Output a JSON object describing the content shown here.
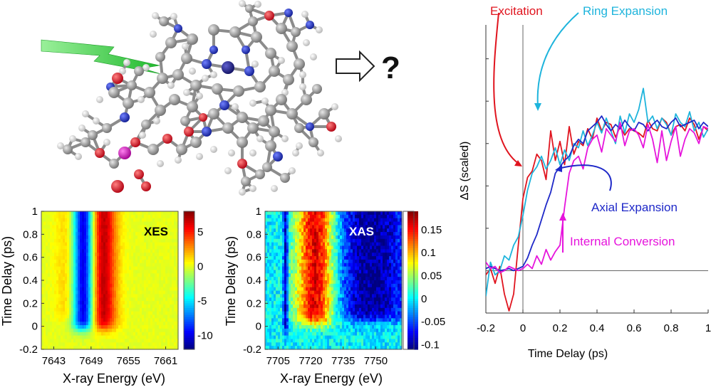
{
  "molecule": {
    "arrow_label": "?",
    "atom_colors": {
      "carbon": "#8c8c8c",
      "hydrogen": "#e6e6e6",
      "oxygen": "#e0141e",
      "nitrogen": "#1e28c8",
      "phosphorus": "#e614c8",
      "cobalt": "#1a1a8c"
    },
    "lightning_color": "#2ec840"
  },
  "chart_data": [
    {
      "type": "heatmap",
      "panel_label": "XES",
      "xlabel": "X-ray Energy (eV)",
      "ylabel": "Time Delay (ps)",
      "xticks": [
        "7643",
        "7649",
        "7655",
        "7661"
      ],
      "xlim": [
        7641,
        7663
      ],
      "yticks": [
        "-0.2",
        "0",
        "0.2",
        "0.4",
        "0.6",
        "0.8",
        "1"
      ],
      "ylim": [
        -0.2,
        1.0
      ],
      "colorbar_ticks": [
        "5",
        "0",
        "-5",
        "-10"
      ],
      "colorbar_range": [
        -12,
        8
      ],
      "features": [
        {
          "kind": "negative",
          "x_center": 7647.8,
          "width": 1.8,
          "onset": -0.02
        },
        {
          "kind": "positive",
          "x_center": 7650.8,
          "width": 2.2,
          "onset": -0.02
        },
        {
          "kind": "weak-positive",
          "x_center": 7645.5,
          "width": 2.0,
          "onset": 0.05
        }
      ]
    },
    {
      "type": "heatmap",
      "panel_label": "XAS",
      "xlabel": "X-ray Energy (eV)",
      "ylabel": "Time Delay (ps)",
      "xticks": [
        "7705",
        "7720",
        "7735",
        "7750"
      ],
      "xlim": [
        7699,
        7762
      ],
      "yticks": [
        "-0.2",
        "0",
        "0.2",
        "0.4",
        "0.6",
        "0.8",
        "1"
      ],
      "ylim": [
        -0.2,
        1.0
      ],
      "colorbar_ticks": [
        "0.15",
        "0.1",
        "0.05",
        "0",
        "-0.05",
        "-0.1"
      ],
      "colorbar_range": [
        -0.11,
        0.19
      ],
      "features": [
        {
          "kind": "negative-line",
          "x_center": 7708.5,
          "width": 1.2,
          "onset": -0.05
        },
        {
          "kind": "positive",
          "x_center": 7722.5,
          "width": 9.0,
          "onset": 0.02
        },
        {
          "kind": "negative",
          "x_center": 7748.0,
          "width": 18.0,
          "onset": 0.05
        }
      ]
    },
    {
      "type": "line",
      "xlabel": "Time Delay (ps)",
      "ylabel": "ΔS (scaled)",
      "xticks": [
        "-0.2",
        "0",
        "0.2",
        "0.4",
        "0.6",
        "0.8",
        "1"
      ],
      "xlim": [
        -0.2,
        1.0
      ],
      "ylim": [
        -1.0,
        5.8
      ],
      "grid": false,
      "series": [
        {
          "name": "Excitation",
          "color": "#e0141e",
          "x": [
            -0.2,
            -0.175,
            -0.15,
            -0.125,
            -0.1,
            -0.075,
            -0.05,
            -0.025,
            0,
            0.025,
            0.05,
            0.075,
            0.1,
            0.125,
            0.15,
            0.175,
            0.2,
            0.225,
            0.25,
            0.275,
            0.3,
            0.325,
            0.35,
            0.375,
            0.4,
            0.425,
            0.45,
            0.475,
            0.5,
            0.525,
            0.55,
            0.575,
            0.6,
            0.625,
            0.65,
            0.675,
            0.7,
            0.725,
            0.75,
            0.775,
            0.8,
            0.825,
            0.85,
            0.875,
            0.9,
            0.925,
            0.95,
            0.975,
            1.0
          ],
          "y": [
            -0.1,
            0.05,
            -0.3,
            0.1,
            -0.55,
            -0.95,
            -0.55,
            0.6,
            1.7,
            2.2,
            2.35,
            2.75,
            2.6,
            2.15,
            3.3,
            2.6,
            3.05,
            2.5,
            3.4,
            2.75,
            3.05,
            2.95,
            3.35,
            3.1,
            3.6,
            3.3,
            3.5,
            3.45,
            3.15,
            3.4,
            3.2,
            3.35,
            3.3,
            3.25,
            3.15,
            3.55,
            3.35,
            3.3,
            3.6,
            3.5,
            3.2,
            3.4,
            3.45,
            3.3,
            3.6,
            3.45,
            3.1,
            3.4,
            3.3
          ]
        },
        {
          "name": "Ring Expansion",
          "color": "#1eb4dc",
          "x": [
            -0.2,
            -0.175,
            -0.15,
            -0.125,
            -0.1,
            -0.075,
            -0.05,
            -0.025,
            0,
            0.025,
            0.05,
            0.075,
            0.1,
            0.125,
            0.15,
            0.175,
            0.2,
            0.225,
            0.25,
            0.275,
            0.3,
            0.325,
            0.35,
            0.375,
            0.4,
            0.425,
            0.45,
            0.475,
            0.5,
            0.525,
            0.55,
            0.575,
            0.6,
            0.625,
            0.65,
            0.675,
            0.7,
            0.725,
            0.75,
            0.775,
            0.8,
            0.825,
            0.85,
            0.875,
            0.9,
            0.925,
            0.95,
            0.975,
            1.0
          ],
          "y": [
            -0.6,
            0.2,
            -0.1,
            0.0,
            0.35,
            0.25,
            0.6,
            0.8,
            1.3,
            1.9,
            2.3,
            2.45,
            2.7,
            2.4,
            2.6,
            2.9,
            2.5,
            2.85,
            2.6,
            3.0,
            2.9,
            3.3,
            2.95,
            3.2,
            3.5,
            3.25,
            3.6,
            3.3,
            3.0,
            3.65,
            3.25,
            3.7,
            3.5,
            3.8,
            4.3,
            3.5,
            3.65,
            3.35,
            3.6,
            3.45,
            3.2,
            3.7,
            3.5,
            3.4,
            3.75,
            3.3,
            3.5,
            3.15,
            3.35
          ]
        },
        {
          "name": "Axial Expansion",
          "color": "#1e28c8",
          "x": [
            -0.2,
            -0.175,
            -0.15,
            -0.125,
            -0.1,
            -0.075,
            -0.05,
            -0.025,
            0,
            0.025,
            0.05,
            0.075,
            0.1,
            0.125,
            0.15,
            0.175,
            0.2,
            0.225,
            0.25,
            0.275,
            0.3,
            0.325,
            0.35,
            0.375,
            0.4,
            0.425,
            0.45,
            0.475,
            0.5,
            0.525,
            0.55,
            0.575,
            0.6,
            0.625,
            0.65,
            0.675,
            0.7,
            0.725,
            0.75,
            0.775,
            0.8,
            0.825,
            0.85,
            0.875,
            0.9,
            0.925,
            0.95,
            0.975,
            1.0
          ],
          "y": [
            0.05,
            0.1,
            0.05,
            0.0,
            0.02,
            0.05,
            0.0,
            0.05,
            0.1,
            0.3,
            0.6,
            0.85,
            1.2,
            1.55,
            1.85,
            2.3,
            2.45,
            2.6,
            2.7,
            2.95,
            3.1,
            3.0,
            3.3,
            3.4,
            3.5,
            3.65,
            3.45,
            3.3,
            3.45,
            3.35,
            3.55,
            3.4,
            3.3,
            3.5,
            3.45,
            3.3,
            3.45,
            3.55,
            3.4,
            3.35,
            3.5,
            3.6,
            3.4,
            3.45,
            3.5,
            3.55,
            3.35,
            3.5,
            3.4
          ]
        },
        {
          "name": "Internal Conversion",
          "color": "#e614dc",
          "x": [
            -0.2,
            -0.175,
            -0.15,
            -0.125,
            -0.1,
            -0.075,
            -0.05,
            -0.025,
            0,
            0.025,
            0.05,
            0.075,
            0.1,
            0.125,
            0.15,
            0.175,
            0.2,
            0.225,
            0.25,
            0.275,
            0.3,
            0.325,
            0.35,
            0.375,
            0.4,
            0.425,
            0.45,
            0.475,
            0.5,
            0.525,
            0.55,
            0.575,
            0.6,
            0.625,
            0.65,
            0.675,
            0.7,
            0.725,
            0.75,
            0.775,
            0.8,
            0.825,
            0.85,
            0.875,
            0.9,
            0.925,
            0.95,
            0.975,
            1.0
          ],
          "y": [
            0.2,
            0.05,
            0.1,
            -0.05,
            0.0,
            0.1,
            0.05,
            0.0,
            0.05,
            0.15,
            0.05,
            0.35,
            0.15,
            0.5,
            0.25,
            0.45,
            0.6,
            1.5,
            2.3,
            2.6,
            2.7,
            2.4,
            2.9,
            3.1,
            3.2,
            2.8,
            3.35,
            3.2,
            3.05,
            3.5,
            2.95,
            3.3,
            3.35,
            3.2,
            2.9,
            3.45,
            3.1,
            2.55,
            3.3,
            2.6,
            3.05,
            3.4,
            2.7,
            3.1,
            3.35,
            3.25,
            3.0,
            3.4,
            3.35
          ]
        }
      ]
    }
  ]
}
